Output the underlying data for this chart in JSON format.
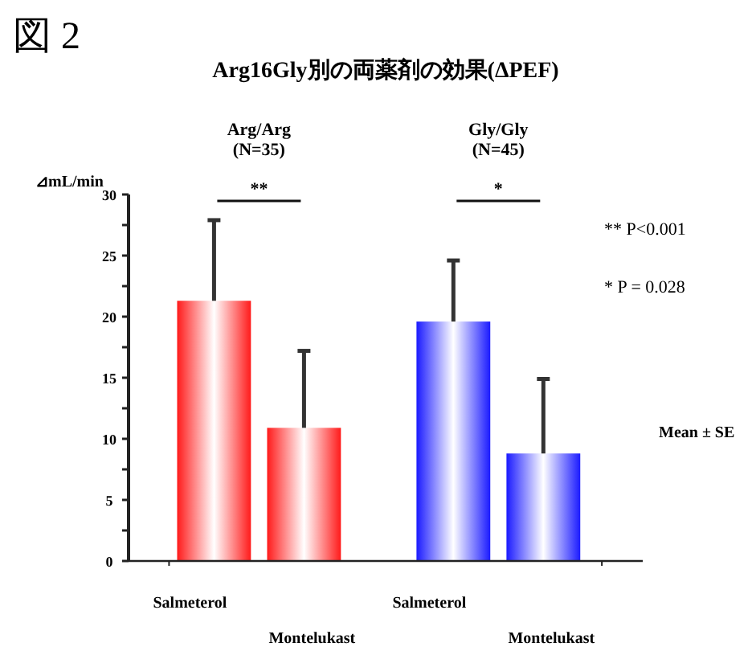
{
  "chart_data": {
    "type": "bar",
    "title": "Arg16Gly別の両薬剤の効果(ΔPEF)",
    "subtitle": "図 2",
    "ylabel": "⊿mL/min",
    "categories": [
      "Salmeterol",
      "Montelukast",
      "Salmeterol",
      "Montelukast"
    ],
    "values": [
      21.3,
      10.9,
      19.6,
      8.8
    ],
    "colors": [
      "#ff1a1a",
      "#ff1a1a",
      "#1a1aff",
      "#1a1aff"
    ],
    "errors": [
      [
        21.3,
        27.9
      ],
      [
        10.9,
        17.2
      ],
      [
        19.6,
        24.6
      ],
      [
        8.8,
        14.9
      ]
    ],
    "ylim": [
      0,
      30
    ],
    "yticks": [
      0,
      {
        "value": 2.5,
        "label": null
      },
      5,
      {
        "value": 7.5,
        "label": null
      },
      10,
      {
        "value": 12.5,
        "label": null
      },
      15,
      {
        "value": 17.5,
        "label": null
      },
      20,
      {
        "value": 22.5,
        "label": null
      },
      25,
      {
        "value": 27.5,
        "label": null
      },
      30
    ],
    "grid": false,
    "annotations": [
      "Arg/Arg\n(N=35)",
      "Gly/Gly\n(N=45)",
      "**",
      "*",
      "**  P<0.001",
      "*   P = 0.028",
      "Mean ± SE"
    ]
  }
}
